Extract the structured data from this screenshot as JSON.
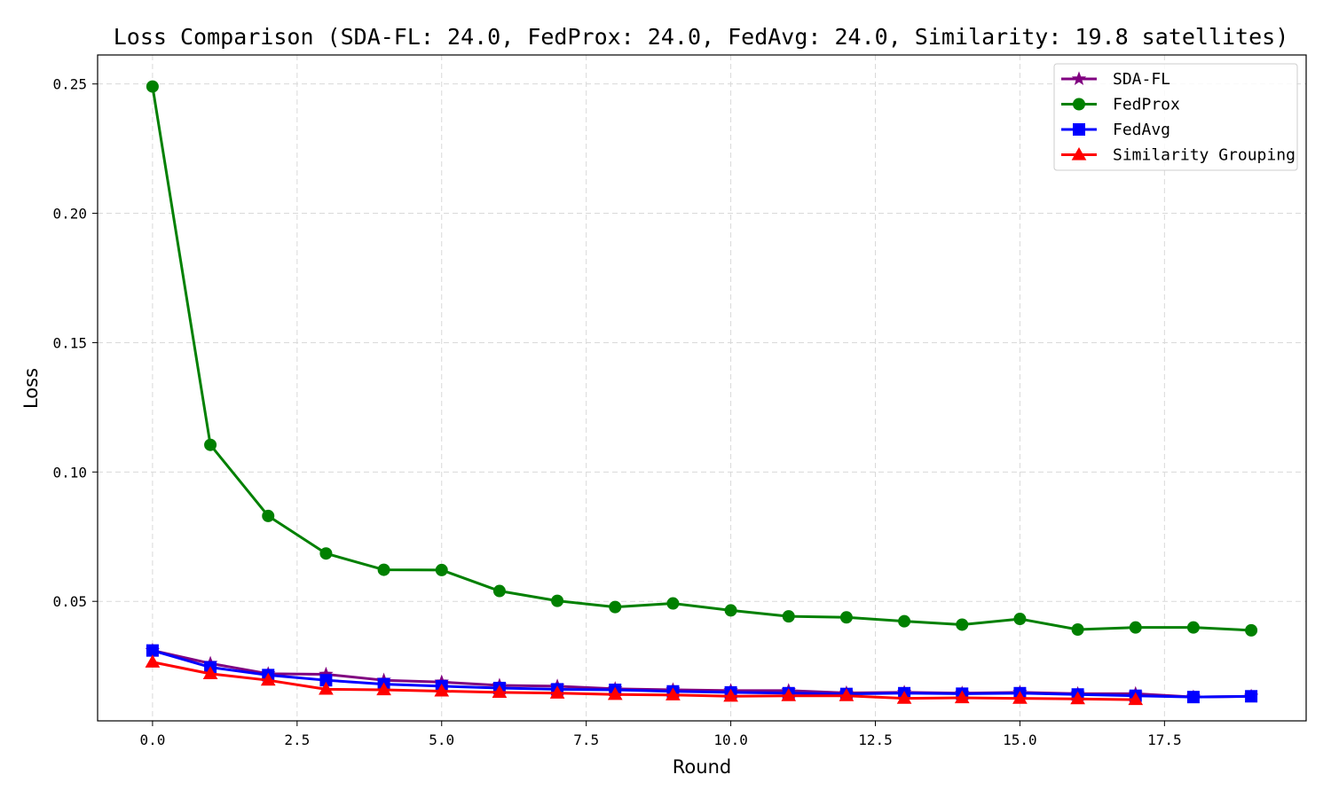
{
  "chart_data": {
    "type": "line",
    "title": "Loss Comparison (SDA-FL: 24.0, FedProx: 24.0, FedAvg: 24.0, Similarity: 19.8 satellites)",
    "xlabel": "Round",
    "ylabel": "Loss",
    "xlim": [
      -0.95,
      19.95
    ],
    "ylim": [
      0.0038,
      0.2612
    ],
    "xticks": [
      0.0,
      2.5,
      5.0,
      7.5,
      10.0,
      12.5,
      15.0,
      17.5
    ],
    "xtick_labels": [
      "0.0",
      "2.5",
      "5.0",
      "7.5",
      "10.0",
      "12.5",
      "15.0",
      "17.5"
    ],
    "yticks": [
      0.05,
      0.1,
      0.15,
      0.2,
      0.25
    ],
    "ytick_labels": [
      "0.05",
      "0.10",
      "0.15",
      "0.20",
      "0.25"
    ],
    "grid": true,
    "legend_position": "top-right",
    "series": [
      {
        "name": "SDA-FL",
        "color": "#800080",
        "marker": "star",
        "x": [
          0,
          1,
          2,
          3,
          4,
          5,
          6,
          7,
          8,
          9,
          10,
          11,
          12,
          13,
          14,
          15,
          16,
          17,
          18,
          19
        ],
        "values": [
          0.031,
          0.026,
          0.022,
          0.0218,
          0.0195,
          0.0188,
          0.0175,
          0.0172,
          0.0162,
          0.0158,
          0.0155,
          0.0155,
          0.0146,
          0.0148,
          0.0145,
          0.0148,
          0.0143,
          0.0143,
          0.013,
          0.0133
        ]
      },
      {
        "name": "FedProx",
        "color": "#008000",
        "marker": "circle",
        "x": [
          0,
          1,
          2,
          3,
          4,
          5,
          6,
          7,
          8,
          9,
          10,
          11,
          12,
          13,
          14,
          15,
          16,
          17,
          18,
          19
        ],
        "values": [
          0.249,
          0.1105,
          0.083,
          0.0685,
          0.0622,
          0.0621,
          0.054,
          0.0502,
          0.0478,
          0.0492,
          0.0465,
          0.0442,
          0.0438,
          0.0423,
          0.041,
          0.0432,
          0.0391,
          0.0399,
          0.0399,
          0.0388
        ]
      },
      {
        "name": "FedAvg",
        "color": "#0000ff",
        "marker": "square",
        "x": [
          0,
          1,
          2,
          3,
          4,
          5,
          6,
          7,
          8,
          9,
          10,
          11,
          12,
          13,
          14,
          15,
          16,
          17,
          18,
          19
        ],
        "values": [
          0.031,
          0.0245,
          0.0215,
          0.0195,
          0.018,
          0.0172,
          0.0165,
          0.016,
          0.0158,
          0.0152,
          0.0148,
          0.0145,
          0.0142,
          0.0145,
          0.0143,
          0.0145,
          0.014,
          0.0135,
          0.013,
          0.0133
        ]
      },
      {
        "name": "Similarity Grouping",
        "color": "#ff0000",
        "marker": "triangle",
        "x": [
          0,
          1,
          2,
          3,
          4,
          5,
          6,
          7,
          8,
          9,
          10,
          11,
          12,
          13,
          14,
          15,
          16,
          17
        ],
        "values": [
          0.0265,
          0.022,
          0.0195,
          0.016,
          0.0158,
          0.0153,
          0.0148,
          0.0145,
          0.014,
          0.0138,
          0.0133,
          0.0135,
          0.0135,
          0.0125,
          0.0127,
          0.0125,
          0.0123,
          0.012
        ]
      }
    ]
  }
}
